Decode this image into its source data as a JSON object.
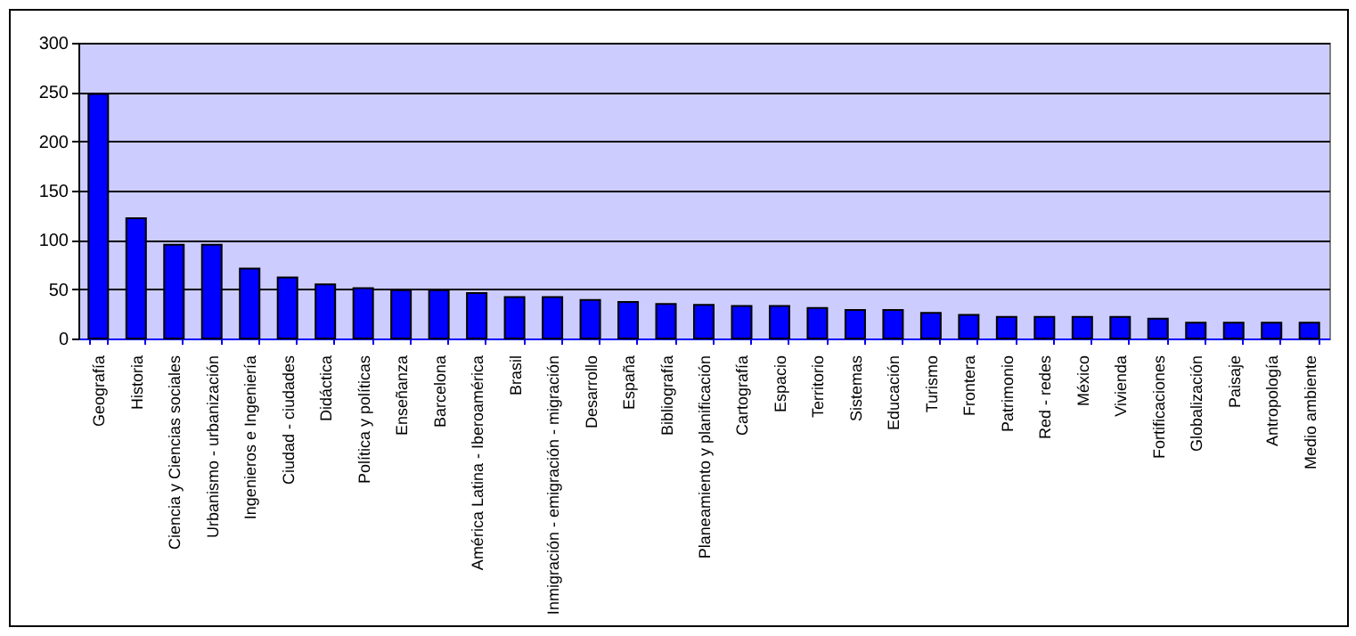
{
  "chart_data": {
    "type": "bar",
    "categories": [
      "Geografía",
      "Historia",
      "Ciencia y Ciencias sociales",
      "Urbanismo - urbanización",
      "Ingenieros e Ingeniería",
      "Ciudad - ciudades",
      "Didáctica",
      "Política y políticas",
      "Enseñanza",
      "Barcelona",
      "América Latina - Iberoamérica",
      "Brasil",
      "Inmigración - emigración - migración",
      "Desarrollo",
      "España",
      "Bibliografía",
      "Planeamiento y planificación",
      "Cartografía",
      "Espacio",
      "Territorio",
      "Sistemas",
      "Educación",
      "Turismo",
      "Frontera",
      "Patrimonio",
      "Red - redes",
      "México",
      "Vivienda",
      "Fortificaciones",
      "Globalización",
      "Paisaje",
      "Antropología",
      "Medio ambiente"
    ],
    "values": [
      248,
      122,
      95,
      95,
      71,
      62,
      55,
      51,
      49,
      49,
      46,
      42,
      42,
      39,
      37,
      35,
      34,
      33,
      33,
      31,
      29,
      29,
      26,
      24,
      22,
      22,
      22,
      22,
      20,
      16,
      16,
      16,
      16
    ],
    "color": "#0000ff",
    "ylim": [
      0,
      300
    ],
    "yticks": [
      0,
      50,
      100,
      150,
      200,
      250,
      300
    ],
    "grid": true
  }
}
